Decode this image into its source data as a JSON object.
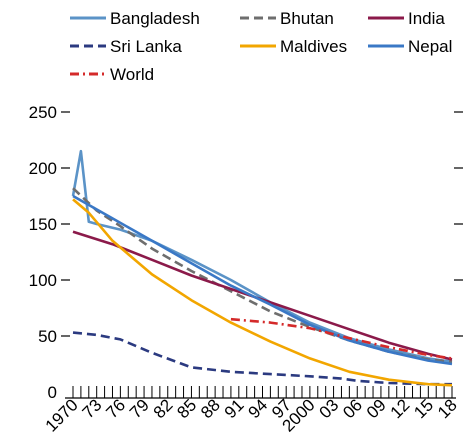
{
  "chart_data": {
    "type": "line",
    "title": "",
    "xlabel": "",
    "ylabel": "",
    "ylim": [
      0,
      250
    ],
    "y_ticks": [
      0,
      50,
      100,
      150,
      200,
      250
    ],
    "y_ticks_both_sides": true,
    "xlim": [
      1970,
      2018
    ],
    "x_tick_labels": [
      {
        "year": 1970,
        "label": "1970"
      },
      {
        "year": 1973,
        "label": "73"
      },
      {
        "year": 1976,
        "label": "76"
      },
      {
        "year": 1979,
        "label": "79"
      },
      {
        "year": 1982,
        "label": "82"
      },
      {
        "year": 1985,
        "label": "85"
      },
      {
        "year": 1988,
        "label": "88"
      },
      {
        "year": 1991,
        "label": "91"
      },
      {
        "year": 1994,
        "label": "94"
      },
      {
        "year": 1997,
        "label": "97"
      },
      {
        "year": 2000,
        "label": "2000"
      },
      {
        "year": 2003,
        "label": "03"
      },
      {
        "year": 2006,
        "label": "06"
      },
      {
        "year": 2009,
        "label": "09"
      },
      {
        "year": 2012,
        "label": "12"
      },
      {
        "year": 2015,
        "label": "15"
      },
      {
        "year": 2018,
        "label": "18"
      }
    ],
    "grid": false,
    "legend_position": "top",
    "series": [
      {
        "name": "Bangladesh",
        "color": "#5b93c7",
        "dash": "solid",
        "x": [
          1970,
          1971,
          1972,
          1973,
          1976,
          1980,
          1985,
          1990,
          1995,
          2000,
          2005,
          2010,
          2015,
          2018
        ],
        "y": [
          175,
          215,
          152,
          150,
          145,
          135,
          118,
          100,
          80,
          62,
          48,
          38,
          30,
          27
        ]
      },
      {
        "name": "Bhutan",
        "color": "#6e6e6e",
        "dash": "dashed",
        "x": [
          1970,
          1973,
          1976,
          1980,
          1985,
          1990,
          1995,
          2000,
          2005,
          2010,
          2015,
          2018
        ],
        "y": [
          182,
          162,
          148,
          128,
          108,
          90,
          72,
          58,
          46,
          36,
          29,
          27
        ]
      },
      {
        "name": "India",
        "color": "#8b1a4a",
        "dash": "solid",
        "x": [
          1970,
          1975,
          1980,
          1985,
          1990,
          1995,
          2000,
          2005,
          2010,
          2015,
          2018
        ],
        "y": [
          143,
          132,
          118,
          104,
          92,
          80,
          68,
          56,
          44,
          34,
          29
        ]
      },
      {
        "name": "Sri Lanka",
        "color": "#2b3a80",
        "dash": "dashed",
        "x": [
          1970,
          1973,
          1976,
          1980,
          1985,
          1990,
          1995,
          2000,
          2004,
          2006,
          2010,
          2015,
          2018
        ],
        "y": [
          53,
          51,
          47,
          35,
          22,
          18,
          16,
          14,
          12,
          10,
          8,
          7,
          7
        ]
      },
      {
        "name": "Maldives",
        "color": "#f2a600",
        "dash": "solid",
        "x": [
          1970,
          1972,
          1975,
          1980,
          1985,
          1990,
          1995,
          2000,
          2005,
          2010,
          2015,
          2018
        ],
        "y": [
          172,
          160,
          135,
          105,
          82,
          62,
          45,
          30,
          18,
          11,
          7,
          6
        ]
      },
      {
        "name": "Nepal",
        "color": "#3a78c6",
        "dash": "solid",
        "x": [
          1970,
          1975,
          1980,
          1985,
          1990,
          1995,
          2000,
          2005,
          2010,
          2015,
          2018
        ],
        "y": [
          175,
          155,
          135,
          115,
          95,
          78,
          60,
          46,
          36,
          28,
          25
        ]
      },
      {
        "name": "World",
        "color": "#d42a2a",
        "dash": "dashdot",
        "x": [
          1990,
          1995,
          2000,
          2005,
          2010,
          2015,
          2018
        ],
        "y": [
          65,
          62,
          57,
          48,
          40,
          33,
          30
        ]
      }
    ]
  }
}
